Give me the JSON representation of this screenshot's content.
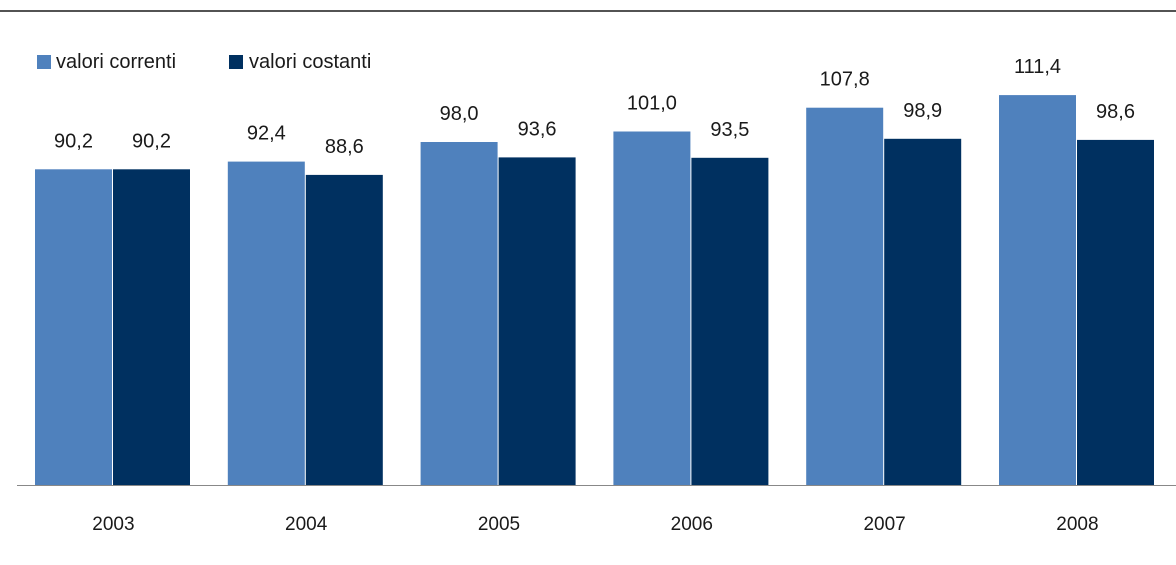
{
  "chart_data": {
    "type": "bar",
    "title": "",
    "xlabel": "",
    "ylabel": "",
    "ylim": [
      0,
      120
    ],
    "grid": false,
    "legend_position": "top-left",
    "categories": [
      "2003",
      "2004",
      "2005",
      "2006",
      "2007",
      "2008"
    ],
    "series": [
      {
        "name": "valori correnti",
        "color": "#4f81bd",
        "values": [
          90.2,
          92.4,
          98.0,
          101.0,
          107.8,
          111.4
        ],
        "labels": [
          "90,2",
          "92,4",
          "98,0",
          "101,0",
          "107,8",
          "111,4"
        ]
      },
      {
        "name": "valori costanti",
        "color": "#003060",
        "values": [
          90.2,
          88.6,
          93.6,
          93.5,
          98.9,
          98.6
        ],
        "labels": [
          "90,2",
          "88,6",
          "93,6",
          "93,5",
          "98,9",
          "98,6"
        ]
      }
    ]
  }
}
